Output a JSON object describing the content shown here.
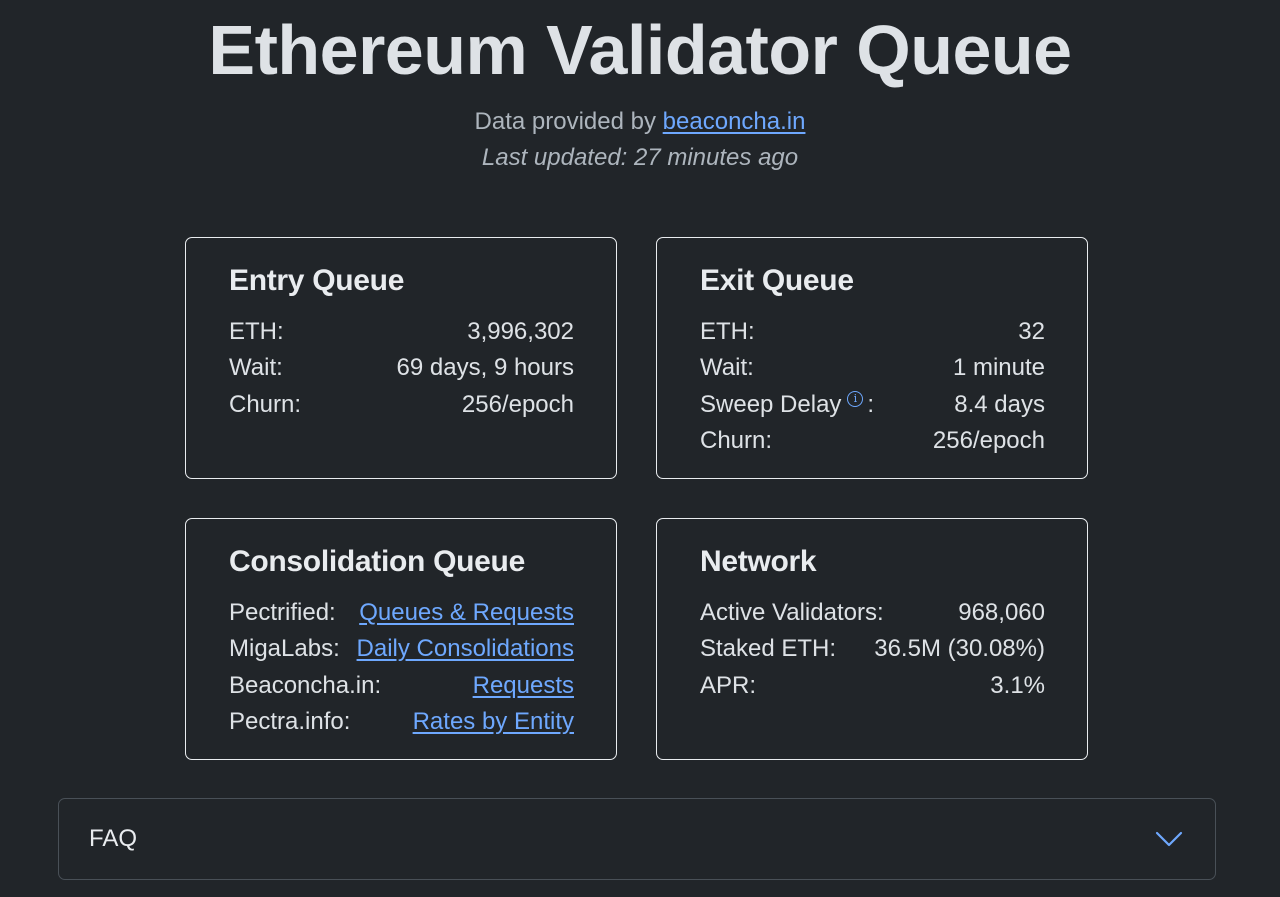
{
  "header": {
    "title": "Ethereum Validator Queue",
    "provided_prefix": "Data provided by",
    "provided_link": "beaconcha.in",
    "last_updated": "Last updated: 27 minutes ago"
  },
  "entry_queue": {
    "title": "Entry Queue",
    "rows": [
      {
        "label": "ETH:",
        "value": "3,996,302"
      },
      {
        "label": "Wait:",
        "value": "69 days, 9 hours"
      },
      {
        "label": "Churn:",
        "value": "256/epoch"
      }
    ]
  },
  "exit_queue": {
    "title": "Exit Queue",
    "rows": [
      {
        "label": "ETH:",
        "value": "32"
      },
      {
        "label": "Wait:",
        "value": "1 minute"
      },
      {
        "label": "Sweep Delay",
        "label_suffix": ":",
        "info_icon": "ⓘ",
        "value": "8.4 days"
      },
      {
        "label": "Churn:",
        "value": "256/epoch"
      }
    ]
  },
  "consolidation_queue": {
    "title": "Consolidation Queue",
    "rows": [
      {
        "label": "Pectrified:",
        "link": "Queues & Requests"
      },
      {
        "label": "MigaLabs:",
        "link": "Daily Consolidations"
      },
      {
        "label": "Beaconcha.in:",
        "link": "Requests"
      },
      {
        "label": "Pectra.info:",
        "link": "Rates by Entity"
      }
    ]
  },
  "network": {
    "title": "Network",
    "rows": [
      {
        "label": "Active Validators:",
        "value": "968,060"
      },
      {
        "label": "Staked ETH:",
        "value": "36.5M (30.08%)"
      },
      {
        "label": "APR:",
        "value": "3.1%"
      }
    ]
  },
  "faq": {
    "label": "FAQ",
    "icon": "chevron-down-icon"
  },
  "colors": {
    "background": "#212529",
    "link": "#6ea8fe",
    "text": "#dee2e6",
    "muted": "#adb5bd"
  }
}
